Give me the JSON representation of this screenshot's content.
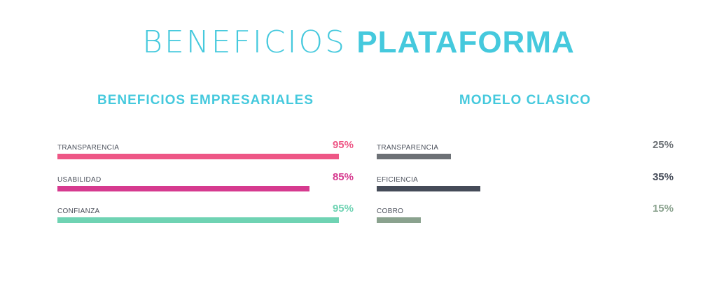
{
  "title": {
    "light": "BENEFICIOS",
    "bold": "PLATAFORMA"
  },
  "left": {
    "heading": "BENEFICIOS EMPRESARIALES",
    "bars": [
      {
        "label": "TRANSPARENCIA",
        "value_text": "95%",
        "value": 0.95,
        "color": "#ee5786"
      },
      {
        "label": "USABILIDAD",
        "value_text": "85%",
        "value": 0.85,
        "color": "#d63a8f"
      },
      {
        "label": "CONFIANZA",
        "value_text": "95%",
        "value": 0.95,
        "color": "#6fd3b3"
      }
    ]
  },
  "right": {
    "heading": "MODELO CLASICO",
    "bars": [
      {
        "label": "TRANSPARENCIA",
        "value_text": "25%",
        "value": 0.25,
        "color": "#6d7176"
      },
      {
        "label": "EFICIENCIA",
        "value_text": "35%",
        "value": 0.35,
        "color": "#454b58"
      },
      {
        "label": "COBRO",
        "value_text": "15%",
        "value": 0.15,
        "color": "#8aa28e"
      }
    ]
  },
  "colors": {
    "accent": "#45c9dd"
  }
}
